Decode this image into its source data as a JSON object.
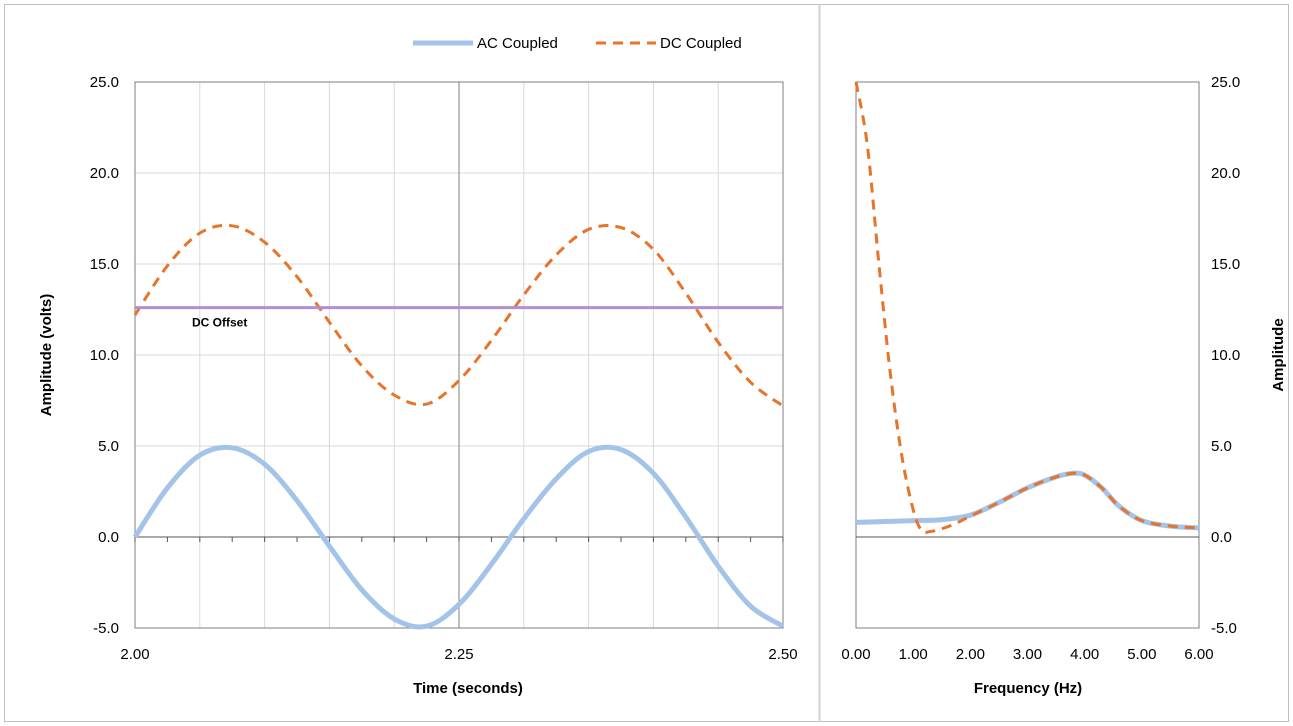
{
  "chart_data": [
    {
      "type": "line",
      "title": "",
      "xlabel": "Time (seconds)",
      "ylabel": "Amplitude (volts)",
      "xlim": [
        2.0,
        2.5
      ],
      "ylim": [
        -5.0,
        25.0
      ],
      "x_ticks": [
        "2.00",
        "2.25",
        "2.50"
      ],
      "y_ticks": [
        "-5.0",
        "0.0",
        "5.0",
        "10.0",
        "15.0",
        "20.0",
        "25.0"
      ],
      "grid": true,
      "legend": {
        "placement": "top-center",
        "entries": [
          "AC Coupled",
          "DC Coupled"
        ]
      },
      "annotation": {
        "text": "DC Offset",
        "value": 12.6
      },
      "series": [
        {
          "name": "AC Coupled",
          "color": "#a3c4e8",
          "style": "solid",
          "x": [
            2.0,
            2.025,
            2.05,
            2.075,
            2.1,
            2.125,
            2.15,
            2.175,
            2.2,
            2.225,
            2.25,
            2.275,
            2.3,
            2.325,
            2.35,
            2.375,
            2.4,
            2.425,
            2.45,
            2.475,
            2.5
          ],
          "values": [
            0.0,
            2.7,
            4.5,
            4.9,
            4.0,
            2.0,
            -0.5,
            -2.9,
            -4.5,
            -4.9,
            -3.7,
            -1.5,
            1.0,
            3.2,
            4.7,
            4.8,
            3.5,
            1.1,
            -1.6,
            -3.8,
            -4.9
          ]
        },
        {
          "name": "DC Coupled",
          "color": "#e8732a",
          "style": "dashed",
          "x": [
            2.0,
            2.025,
            2.05,
            2.075,
            2.1,
            2.125,
            2.15,
            2.175,
            2.2,
            2.225,
            2.25,
            2.275,
            2.3,
            2.325,
            2.35,
            2.375,
            2.4,
            2.425,
            2.45,
            2.475,
            2.5
          ],
          "values": [
            12.2,
            14.9,
            16.7,
            17.1,
            16.2,
            14.3,
            11.8,
            9.4,
            7.8,
            7.3,
            8.6,
            10.8,
            13.3,
            15.5,
            16.9,
            17.0,
            15.8,
            13.4,
            10.7,
            8.5,
            7.2
          ]
        },
        {
          "name": "DC Offset",
          "color": "#b48ecf",
          "style": "solid",
          "x": [
            2.0,
            2.5
          ],
          "values": [
            12.6,
            12.6
          ]
        }
      ]
    },
    {
      "type": "line",
      "title": "",
      "xlabel": "Frequency (Hz)",
      "ylabel": "Amplitude",
      "xlim": [
        0.0,
        6.0
      ],
      "ylim": [
        -5.0,
        25.0
      ],
      "x_ticks": [
        "0.00",
        "1.00",
        "2.00",
        "3.00",
        "4.00",
        "5.00",
        "6.00"
      ],
      "y_ticks": [
        "-5.0",
        "0.0",
        "5.0",
        "10.0",
        "15.0",
        "20.0",
        "25.0"
      ],
      "grid": false,
      "series": [
        {
          "name": "AC Coupled",
          "color": "#a3c4e8",
          "style": "solid",
          "x": [
            0.0,
            0.5,
            1.0,
            1.5,
            2.0,
            2.5,
            3.0,
            3.5,
            3.8,
            4.0,
            4.3,
            4.6,
            5.0,
            5.5,
            6.0
          ],
          "values": [
            0.8,
            0.85,
            0.9,
            0.95,
            1.2,
            1.9,
            2.7,
            3.3,
            3.5,
            3.4,
            2.7,
            1.7,
            0.9,
            0.6,
            0.5
          ]
        },
        {
          "name": "DC Coupled",
          "color": "#e8732a",
          "style": "dashed",
          "x": [
            0.0,
            0.2,
            0.4,
            0.6,
            0.8,
            1.0,
            1.15,
            1.3,
            1.5,
            1.75,
            2.0,
            2.5,
            3.0,
            3.5,
            3.8,
            4.0,
            4.3,
            4.6,
            5.0,
            5.5,
            6.0
          ],
          "values": [
            25.0,
            21.5,
            15.0,
            9.0,
            4.5,
            1.5,
            0.35,
            0.3,
            0.45,
            0.75,
            1.15,
            1.9,
            2.7,
            3.3,
            3.5,
            3.4,
            2.7,
            1.7,
            0.9,
            0.6,
            0.5
          ]
        }
      ]
    }
  ]
}
